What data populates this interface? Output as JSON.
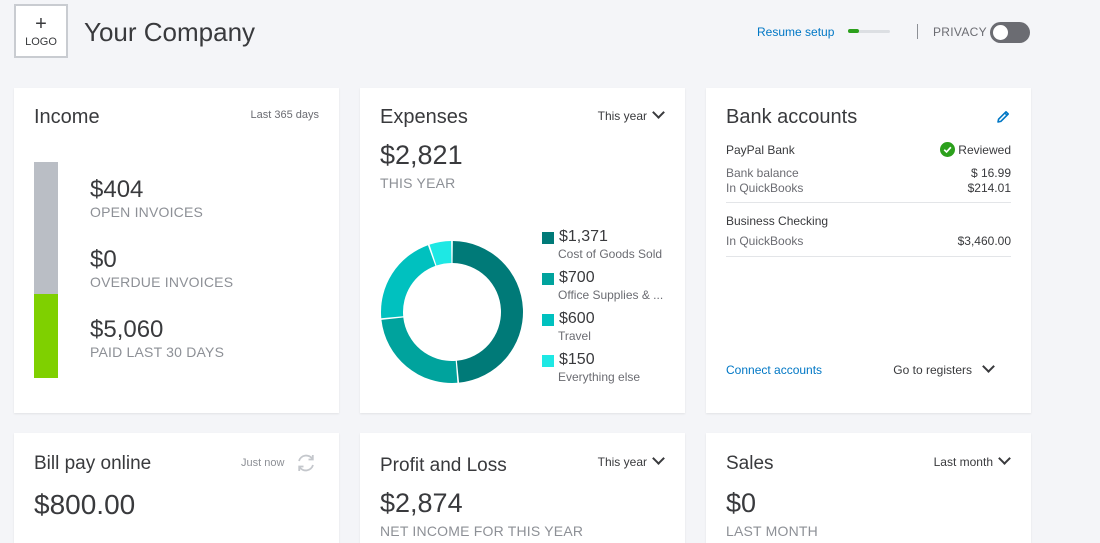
{
  "header": {
    "logo_plus": "+",
    "logo_label": "LOGO",
    "company_name": "Your Company",
    "resume_setup": "Resume setup",
    "setup_progress": 0.25,
    "privacy_label": "PRIVACY"
  },
  "income": {
    "title": "Income",
    "period": "Last 365 days",
    "open_amount": "$404",
    "open_label": "OPEN INVOICES",
    "overdue_amount": "$0",
    "overdue_label": "OVERDUE INVOICES",
    "paid_amount": "$5,060",
    "paid_label": "PAID LAST 30 DAYS"
  },
  "expenses": {
    "title": "Expenses",
    "period": "This year",
    "total": "$2,821",
    "total_label": "THIS YEAR",
    "items": [
      {
        "amount": "$1,371",
        "category": "Cost of Goods Sold",
        "value": 1371,
        "color": "#007a78"
      },
      {
        "amount": "$700",
        "category": "Office Supplies & ...",
        "value": 700,
        "color": "#00a39d"
      },
      {
        "amount": "$600",
        "category": "Travel",
        "value": 600,
        "color": "#00c1bf"
      },
      {
        "amount": "$150",
        "category": "Everything else",
        "value": 150,
        "color": "#1ee8e4"
      }
    ]
  },
  "bank": {
    "title": "Bank accounts",
    "accounts": [
      {
        "name": "PayPal Bank",
        "status": "Reviewed",
        "bank_balance_label": "Bank balance",
        "bank_balance": "$ 16.99",
        "qb_label": "In QuickBooks",
        "qb_balance": "$214.01"
      },
      {
        "name": "Business Checking",
        "qb_label": "In QuickBooks",
        "qb_balance": "$3,460.00"
      }
    ],
    "connect": "Connect accounts",
    "registers": "Go to registers"
  },
  "bill_pay": {
    "title": "Bill pay online",
    "status": "Just now",
    "amount": "$800.00"
  },
  "profit_loss": {
    "title": "Profit and Loss",
    "period": "This year",
    "amount": "$2,874",
    "label": "NET INCOME FOR THIS YEAR"
  },
  "sales": {
    "title": "Sales",
    "period": "Last month",
    "amount": "$0",
    "label": "LAST MONTH"
  },
  "colors": {
    "accent_blue": "#0077c5",
    "green": "#2ca01c",
    "income_gray": "#babec5",
    "income_green": "#7fd000"
  }
}
